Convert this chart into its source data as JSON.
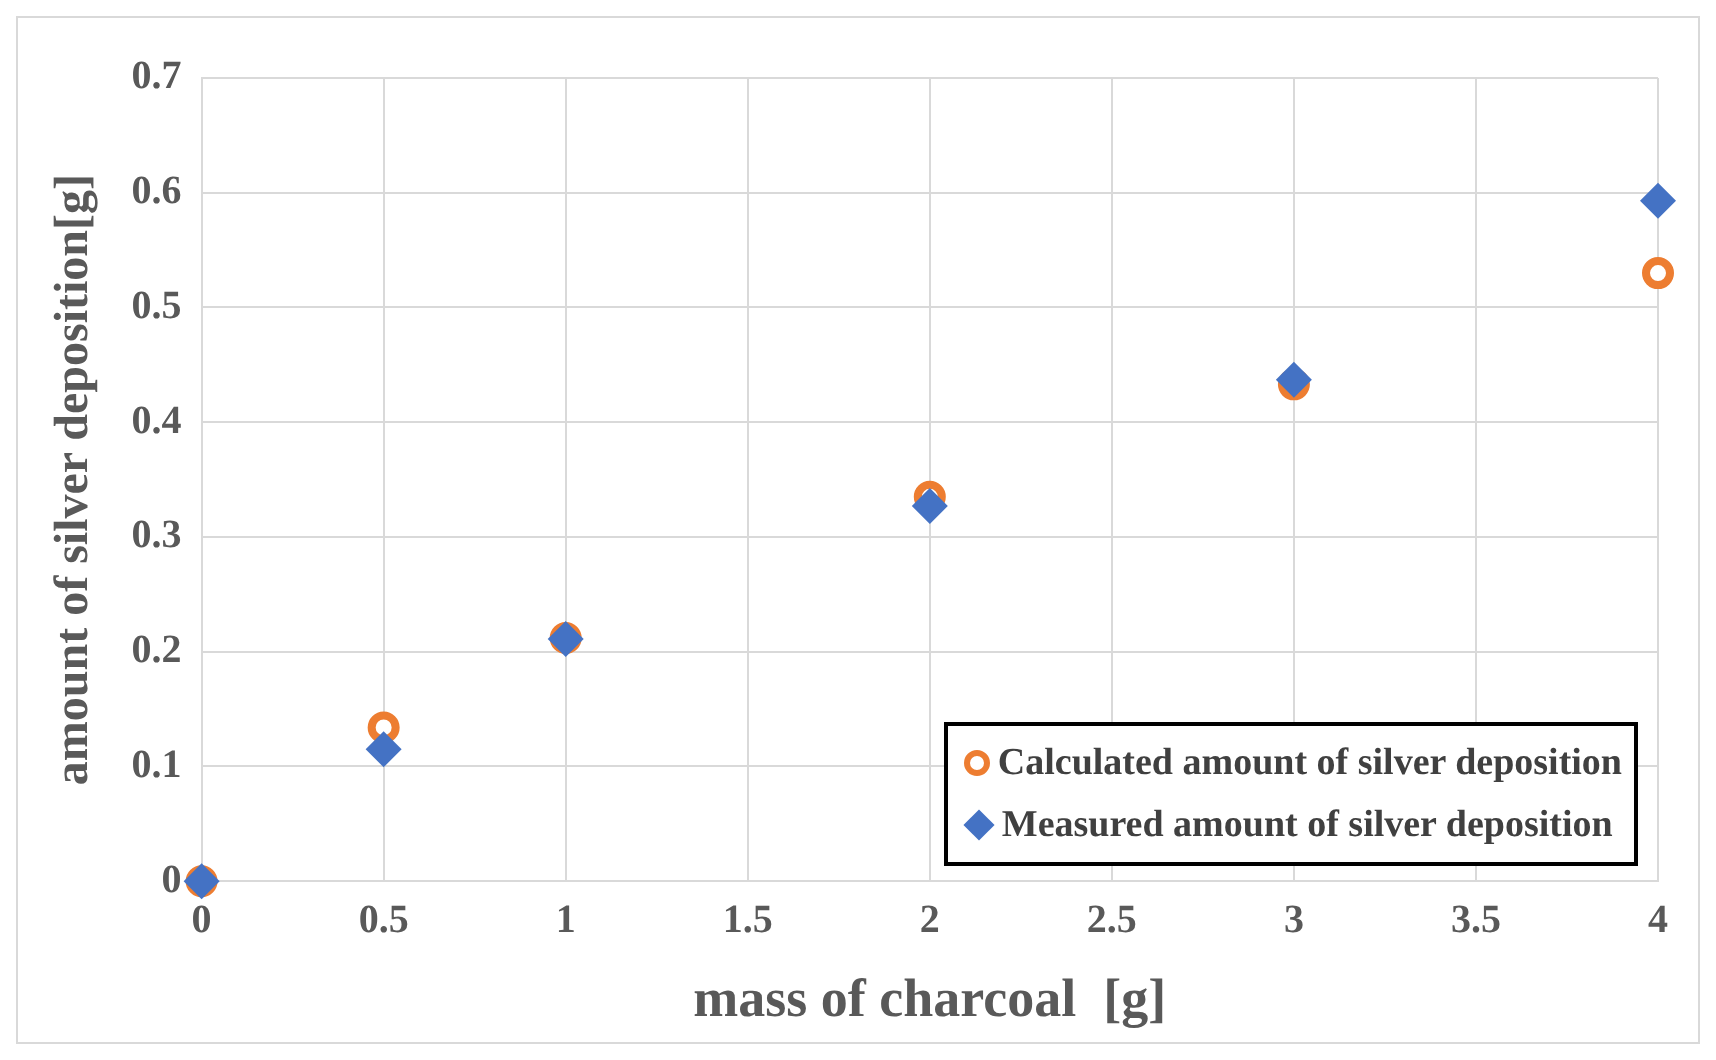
{
  "chart_data": {
    "type": "scatter",
    "xlabel": "mass of charcoal  [g]",
    "ylabel": "amount of silver deposition[g]",
    "x": [
      0,
      0.5,
      1,
      2,
      3,
      4
    ],
    "series": [
      {
        "name": "Calculated amount of silver deposition",
        "color": "#ed7d31",
        "marker": "circle",
        "values": [
          0,
          0.134,
          0.212,
          0.335,
          0.433,
          0.53
        ]
      },
      {
        "name": "Measured amount of silver deposition",
        "color": "#4472c4",
        "marker": "diamond",
        "values": [
          0,
          0.115,
          0.211,
          0.327,
          0.437,
          0.593
        ]
      }
    ],
    "xlim": [
      0,
      4
    ],
    "xticks": [
      0,
      0.5,
      1,
      1.5,
      2,
      2.5,
      3,
      3.5,
      4
    ],
    "ylim": [
      0,
      0.7
    ],
    "yticks": [
      0,
      0.1,
      0.2,
      0.3,
      0.4,
      0.5,
      0.6,
      0.7
    ],
    "grid": true,
    "legend": "bottom right"
  }
}
